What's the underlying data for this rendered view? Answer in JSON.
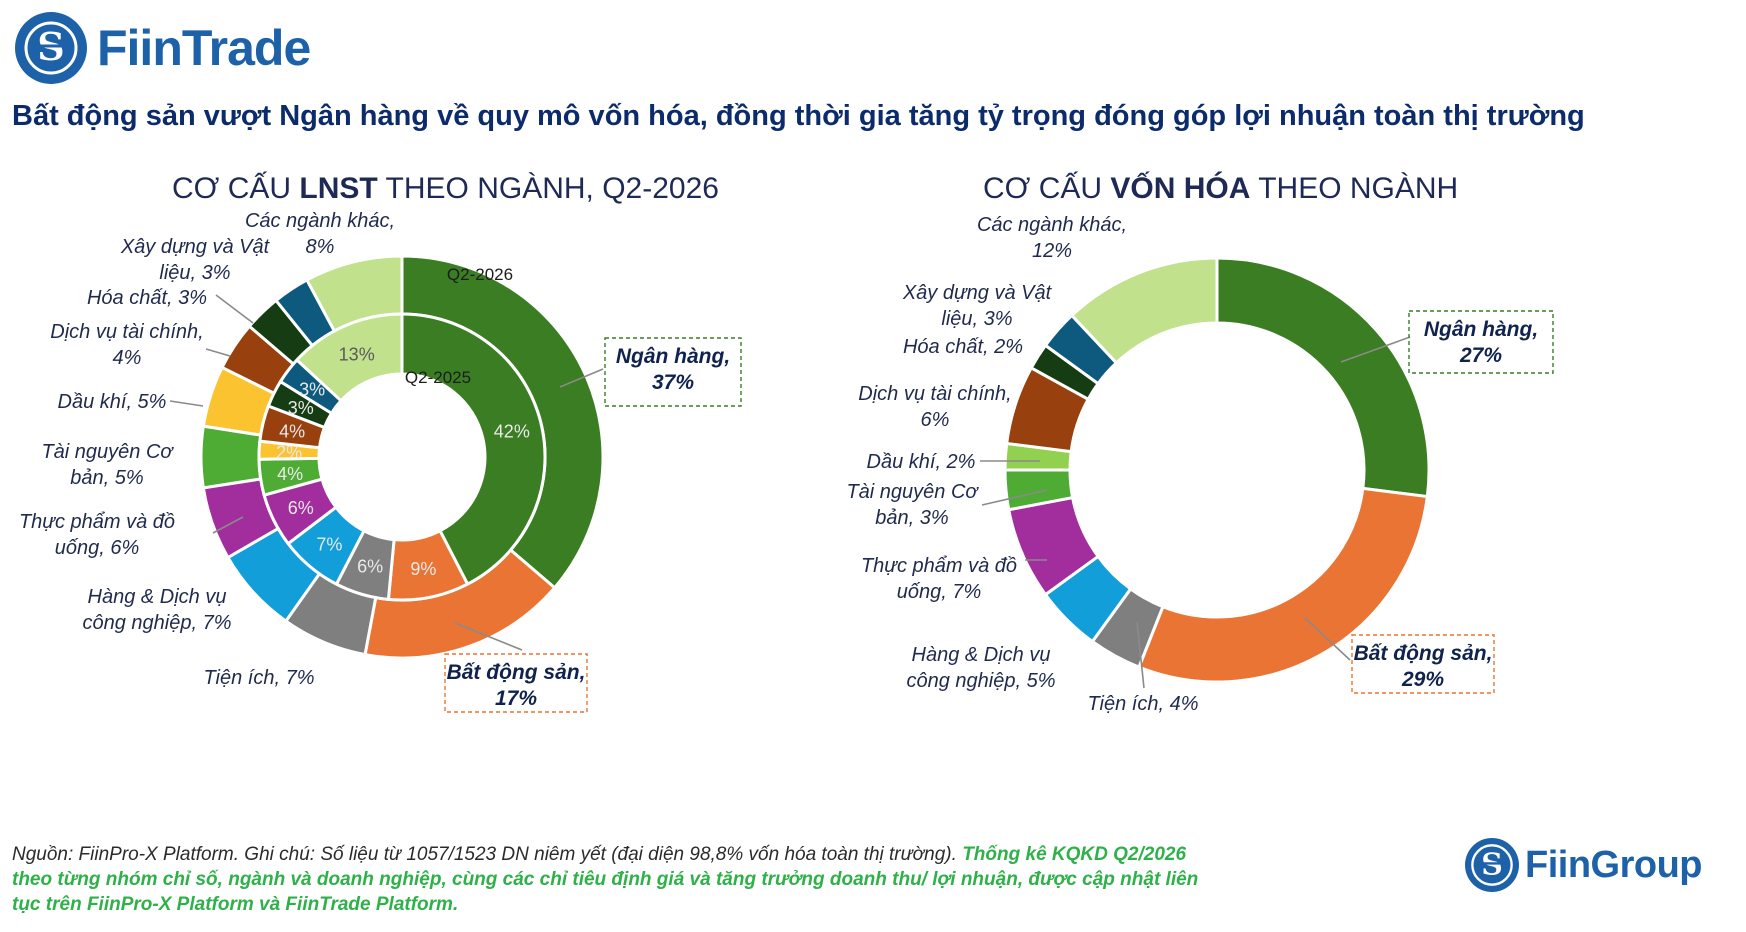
{
  "brand": {
    "name": "FiinTrade",
    "footer_brand": "FiinGroup"
  },
  "headline": "Bất động sản vượt Ngân hàng về quy mô vốn hóa, đồng thời gia tăng tỷ trọng đóng góp lợi nhuận toàn thị trường",
  "charts": {
    "left_title": {
      "pre": "CƠ CẤU ",
      "bold": "LNST",
      "post": " THEO NGÀNH, Q2-2026"
    },
    "right_title": {
      "pre": "CƠ CẤU ",
      "bold": "VỐN HÓA",
      "post": " THEO NGÀNH"
    }
  },
  "footer": {
    "note": "Nguồn: FiinPro-X Platform. Ghi chú: Số liệu từ 1057/1523 DN niêm yết (đại diện 98,8% vốn hóa toàn thị trường). ",
    "highlight": "Thống kê KQKD Q2/2026 theo từng nhóm chỉ số, ngành và doanh nghiệp, cùng các chỉ tiêu định giá và tăng trưởng doanh thu/ lợi nhuận, được cập nhật liên tục trên FiinPro-X Platform và FiinTrade Platform."
  },
  "colors": {
    "Ngân hàng": "#3a7d22",
    "Bất động sản": "#ea7434",
    "Tiện ích": "#7f7f7f",
    "Hàng & Dịch vụ công nghiệp": "#129ed8",
    "Thực phẩm và đồ uống": "#a12e9c",
    "Tài nguyên Cơ bản": "#4eac35",
    "Dầu khí": "#fcc331",
    "Dịch vụ tài chính": "#99400f",
    "Hóa chất": "#153c12",
    "Xây dựng và Vật liệu": "#0e5a7f",
    "Các ngành khác": "#c1e18c",
    "Dầu khí (vốn hóa)": "#92d050"
  },
  "chart_data": [
    {
      "type": "pie",
      "variant": "nested-donut",
      "title": "CƠ CẤU LNST THEO NGÀNH, Q2-2026",
      "categories": [
        "Ngân hàng",
        "Bất động sản",
        "Tiện ích",
        "Hàng & Dịch vụ công nghiệp",
        "Thực phẩm và đồ uống",
        "Tài nguyên Cơ bản",
        "Dầu khí",
        "Dịch vụ tài chính",
        "Hóa chất",
        "Xây dựng và Vật liệu",
        "Các ngành khác"
      ],
      "series": [
        {
          "name": "Q2-2026",
          "ring": "outer",
          "values": [
            37,
            17,
            7,
            7,
            6,
            5,
            5,
            4,
            3,
            3,
            8
          ]
        },
        {
          "name": "Q2-2025",
          "ring": "inner",
          "values": [
            42,
            9,
            6,
            7,
            6,
            4,
            2,
            4,
            3,
            3,
            13
          ]
        }
      ],
      "outer_labels": [
        {
          "line1": "Ngân hàng,",
          "line2": "37%",
          "boxed": true,
          "box_color": "#3a7d22"
        },
        {
          "line1": "Bất động sản,",
          "line2": "17%",
          "boxed": true,
          "box_color": "#ea7434"
        },
        {
          "line1": "Tiện ích, 7%",
          "line2": ""
        },
        {
          "line1": "Hàng & Dịch vụ",
          "line2": "công nghiệp, 7%"
        },
        {
          "line1": "Thực phẩm và đồ",
          "line2": "uống, 6%"
        },
        {
          "line1": "Tài nguyên Cơ",
          "line2": "bản, 5%"
        },
        {
          "line1": "Dầu khí, 5%",
          "line2": ""
        },
        {
          "line1": "Dịch vụ tài chính,",
          "line2": "4%"
        },
        {
          "line1": "Hóa chất, 3%",
          "line2": ""
        },
        {
          "line1": "Xây dựng và Vật",
          "line2": "liệu, 3%"
        },
        {
          "line1": "Các ngành khác,",
          "line2": "8%"
        }
      ],
      "inner_labels": [
        "42%",
        "9%",
        "6%",
        "7%",
        "6%",
        "4%",
        "2%",
        "4%",
        "3%",
        "3%",
        "13%"
      ]
    },
    {
      "type": "pie",
      "variant": "donut",
      "title": "CƠ CẤU VỐN HÓA THEO NGÀNH",
      "categories": [
        "Ngân hàng",
        "Bất động sản",
        "Tiện ích",
        "Hàng & Dịch vụ công nghiệp",
        "Thực phẩm và đồ uống",
        "Tài nguyên Cơ bản",
        "Dầu khí",
        "Dịch vụ tài chính",
        "Hóa chất",
        "Xây dựng và Vật liệu",
        "Các ngành khác"
      ],
      "values": [
        27,
        29,
        4,
        5,
        7,
        3,
        2,
        6,
        2,
        3,
        12
      ],
      "labels": [
        {
          "line1": "Ngân hàng,",
          "line2": "27%",
          "boxed": true,
          "box_color": "#3a7d22"
        },
        {
          "line1": "Bất động sản,",
          "line2": "29%",
          "boxed": true,
          "box_color": "#ea7434"
        },
        {
          "line1": "Tiện ích, 4%",
          "line2": ""
        },
        {
          "line1": "Hàng & Dịch vụ",
          "line2": "công nghiệp, 5%"
        },
        {
          "line1": "Thực phẩm và đồ",
          "line2": "uống, 7%"
        },
        {
          "line1": "Tài nguyên Cơ",
          "line2": "bản, 3%"
        },
        {
          "line1": "Dầu khí, 2%",
          "line2": ""
        },
        {
          "line1": "Dịch vụ tài chính,",
          "line2": "6%"
        },
        {
          "line1": "Hóa chất, 2%",
          "line2": ""
        },
        {
          "line1": "Xây dựng và Vật",
          "line2": "liệu, 3%"
        },
        {
          "line1": "Các ngành khác,",
          "line2": "12%"
        }
      ]
    }
  ]
}
